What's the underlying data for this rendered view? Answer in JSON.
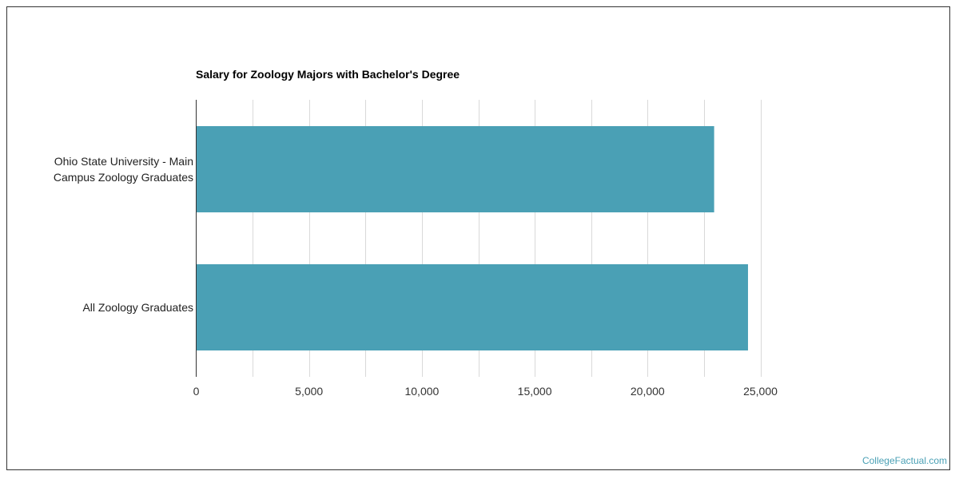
{
  "chart_data": {
    "type": "bar",
    "orientation": "horizontal",
    "title": "Salary for Zoology Majors with Bachelor's Degree",
    "categories": [
      "Ohio State University - Main\nCampus Zoology Graduates",
      "All Zoology Graduates"
    ],
    "values": [
      22950,
      24450
    ],
    "xlim": [
      0,
      25000
    ],
    "xticks": [
      0,
      5000,
      10000,
      15000,
      20000,
      25000
    ],
    "xtick_labels": [
      "0",
      "5,000",
      "10,000",
      "15,000",
      "20,000",
      "25,000"
    ],
    "xlabel": "",
    "ylabel": "",
    "grid": true,
    "bar_color": "#4aa0b5",
    "grid_color": "#d9d9d9"
  },
  "watermark": "CollegeFactual.com"
}
